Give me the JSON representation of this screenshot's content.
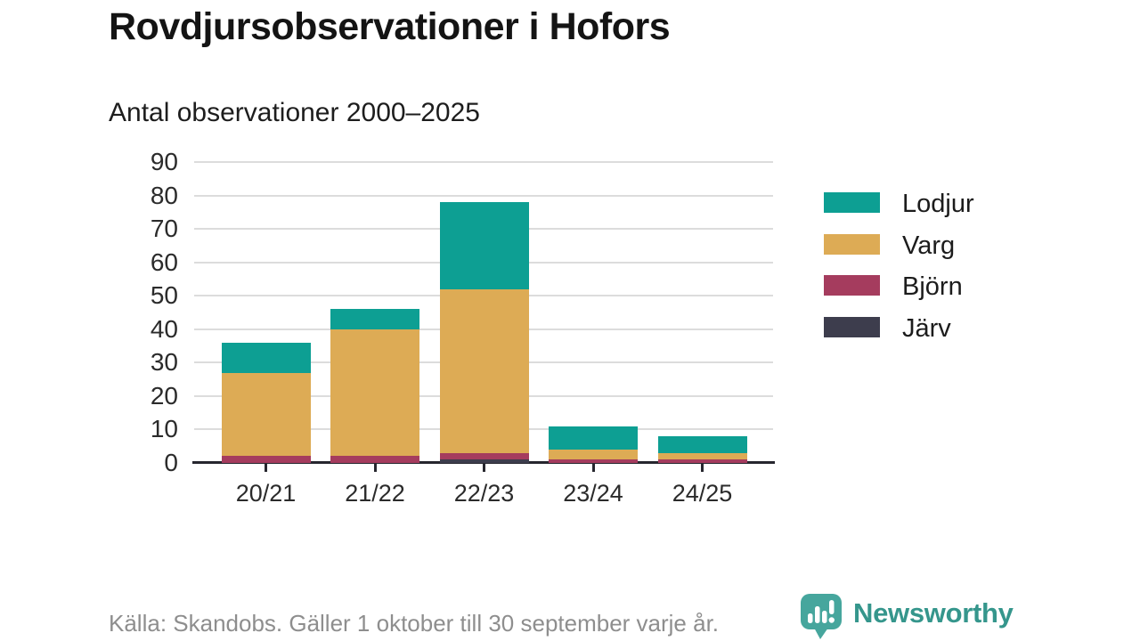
{
  "header": {
    "title": "Rovdjursobservationer i Hofors",
    "subtitle": "Antal observationer 2000–2025"
  },
  "footer": {
    "source_note": "Källa: Skandobs. Gäller 1 oktober till 30 september varje år.",
    "logo_text": "Newsworthy"
  },
  "colors": {
    "axis": "#26262e",
    "grid": "#dcdcdc",
    "tick_text": "#2b2b2b",
    "muted_text": "#8e8e8e",
    "brand": "#35968c",
    "brand_icon": "#46a69d"
  },
  "chart_data": {
    "type": "bar",
    "stacked": true,
    "title": "Rovdjursobservationer i Hofors",
    "subtitle": "Antal observationer 2000–2025",
    "categories": [
      "20/21",
      "21/22",
      "22/23",
      "23/24",
      "24/25"
    ],
    "series": [
      {
        "name": "Lodjur",
        "color": "#0d9f93",
        "values": [
          9,
          6,
          26,
          7,
          5
        ]
      },
      {
        "name": "Varg",
        "color": "#ddab55",
        "values": [
          25,
          38,
          49,
          3,
          2
        ]
      },
      {
        "name": "Björn",
        "color": "#a53c5e",
        "values": [
          2,
          2,
          2,
          1,
          1
        ]
      },
      {
        "name": "Järv",
        "color": "#3d3d4d",
        "values": [
          0,
          0,
          1,
          0,
          0
        ]
      }
    ],
    "totals": [
      36,
      46,
      78,
      11,
      8
    ],
    "ylim": [
      0,
      90
    ],
    "ytick_step": 10,
    "xlabel": "",
    "ylabel": "",
    "grid": true,
    "legend_position": "right"
  }
}
